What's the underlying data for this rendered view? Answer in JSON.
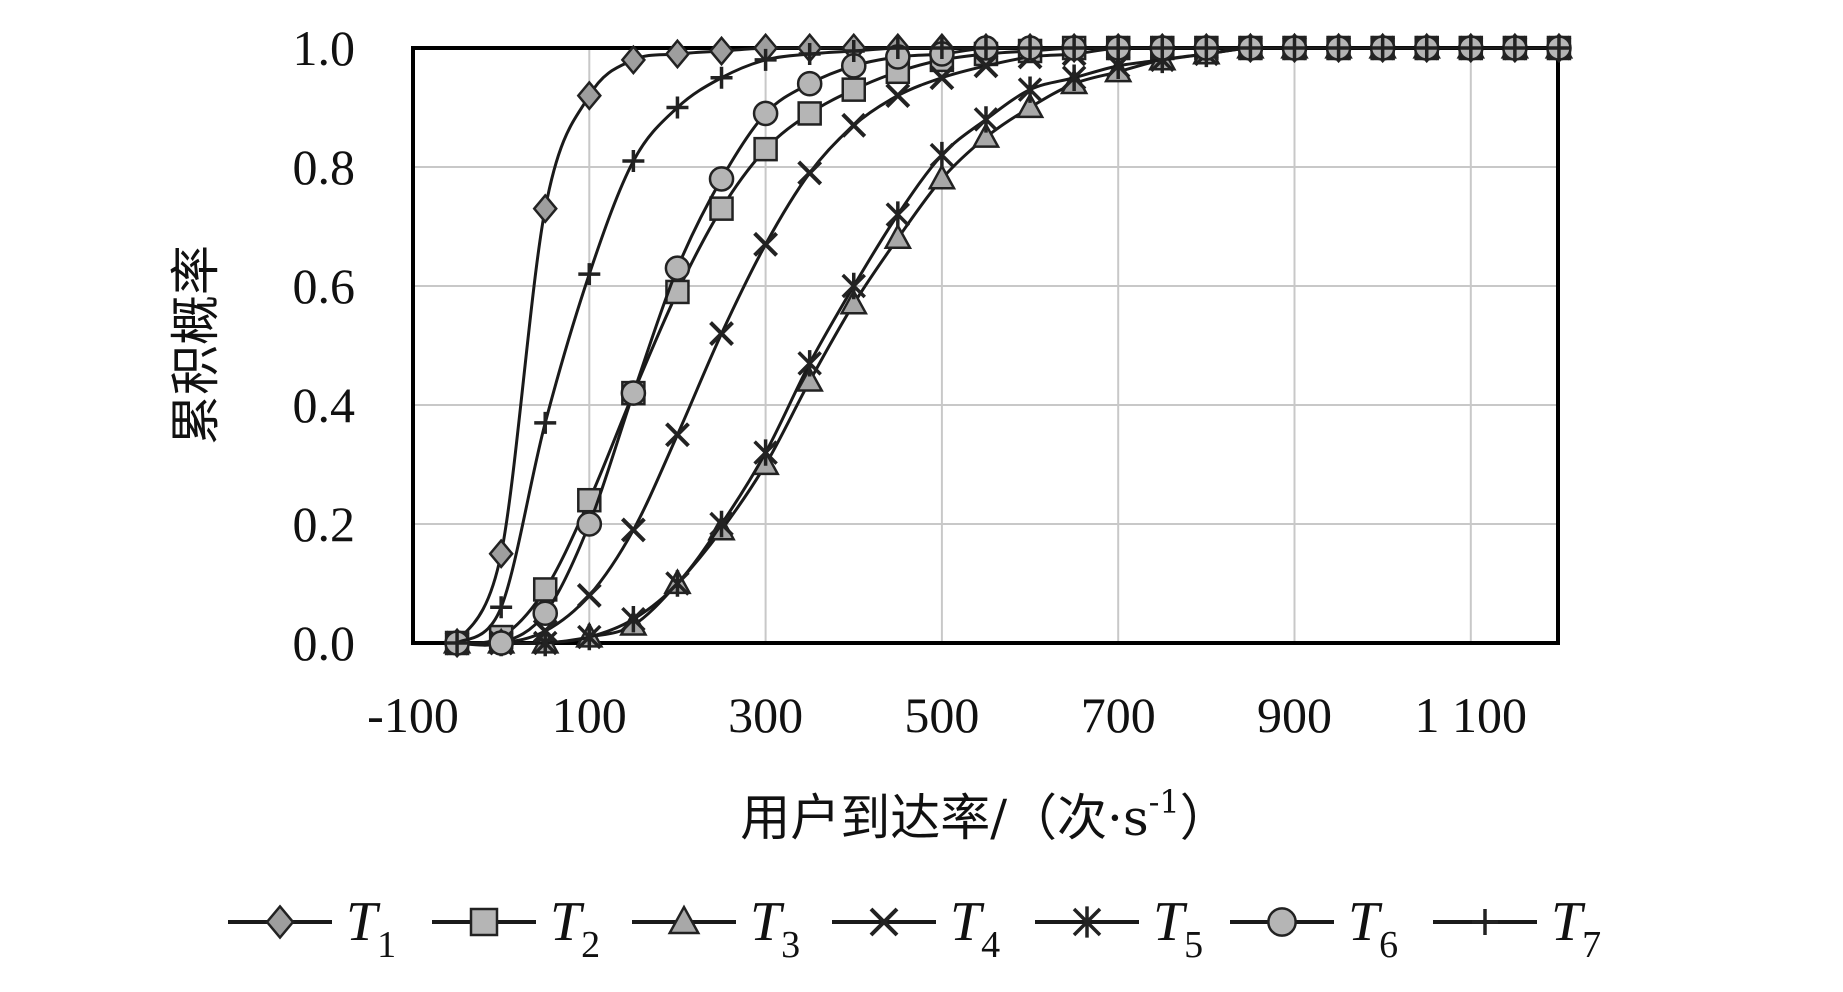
{
  "chart_data": {
    "type": "line",
    "title": "",
    "xlabel": "用户到达率/（次·s",
    "xlabel_superscript": "-1",
    "xlabel_close": "）",
    "ylabel": "累积概率",
    "xlim": [
      -100,
      1200
    ],
    "ylim": [
      0,
      1
    ],
    "grid": true,
    "legend": "bottom",
    "x_ticks": [
      -100,
      100,
      300,
      500,
      700,
      900,
      1100
    ],
    "x_tick_labels": [
      "-100",
      "100",
      "300",
      "500",
      "700",
      "900",
      "1 100"
    ],
    "y_ticks": [
      0,
      0.2,
      0.4,
      0.6,
      0.8,
      1.0
    ],
    "y_tick_labels": [
      "0.0",
      "0.2",
      "0.4",
      "0.6",
      "0.8",
      "1.0"
    ],
    "x": [
      -50,
      0,
      50,
      100,
      150,
      200,
      250,
      300,
      350,
      400,
      450,
      500,
      550,
      600,
      650,
      700,
      750,
      800,
      850,
      900,
      950,
      1000,
      1050,
      1100,
      1150,
      1200
    ],
    "series": [
      {
        "name": "T",
        "sub": "1",
        "marker": "diamond",
        "color": "#9e9e9e",
        "values": [
          0.0,
          0.15,
          0.73,
          0.92,
          0.98,
          0.99,
          0.995,
          1,
          1,
          1,
          1,
          1,
          1,
          1,
          1,
          1,
          1,
          1,
          1,
          1,
          1,
          1,
          1,
          1,
          1,
          1
        ]
      },
      {
        "name": "T",
        "sub": "2",
        "marker": "square",
        "color": "#b5b5b5",
        "values": [
          0.0,
          0.01,
          0.09,
          0.24,
          0.42,
          0.59,
          0.73,
          0.83,
          0.89,
          0.93,
          0.96,
          0.98,
          0.99,
          0.995,
          1,
          1,
          1,
          1,
          1,
          1,
          1,
          1,
          1,
          1,
          1,
          1
        ]
      },
      {
        "name": "T",
        "sub": "3",
        "marker": "triangle",
        "color": "#a8a8a8",
        "values": [
          0.0,
          0.0,
          0.0,
          0.01,
          0.03,
          0.1,
          0.19,
          0.3,
          0.44,
          0.57,
          0.68,
          0.78,
          0.85,
          0.9,
          0.94,
          0.96,
          0.98,
          0.99,
          1,
          1,
          1,
          1,
          1,
          1,
          1,
          1
        ]
      },
      {
        "name": "T",
        "sub": "4",
        "marker": "x",
        "color": "#1a1a1a",
        "values": [
          0.0,
          0.0,
          0.02,
          0.08,
          0.19,
          0.35,
          0.52,
          0.67,
          0.79,
          0.87,
          0.92,
          0.95,
          0.97,
          0.985,
          0.99,
          1,
          1,
          1,
          1,
          1,
          1,
          1,
          1,
          1,
          1,
          1
        ]
      },
      {
        "name": "T",
        "sub": "5",
        "marker": "asterisk",
        "color": "#1a1a1a",
        "values": [
          0.0,
          0.0,
          0.0,
          0.01,
          0.04,
          0.1,
          0.2,
          0.32,
          0.47,
          0.6,
          0.72,
          0.82,
          0.88,
          0.93,
          0.95,
          0.97,
          0.98,
          0.99,
          1,
          1,
          1,
          1,
          1,
          1,
          1,
          1
        ]
      },
      {
        "name": "T",
        "sub": "6",
        "marker": "circle",
        "color": "#b5b5b5",
        "values": [
          0.0,
          0.0,
          0.05,
          0.2,
          0.42,
          0.63,
          0.78,
          0.89,
          0.94,
          0.97,
          0.985,
          0.99,
          1,
          1,
          1,
          1,
          1,
          1,
          1,
          1,
          1,
          1,
          1,
          1,
          1,
          1
        ]
      },
      {
        "name": "T",
        "sub": "7",
        "marker": "plus",
        "color": "#1a1a1a",
        "values": [
          0.0,
          0.06,
          0.37,
          0.62,
          0.81,
          0.9,
          0.95,
          0.98,
          0.99,
          0.995,
          1,
          1,
          1,
          1,
          1,
          1,
          1,
          1,
          1,
          1,
          1,
          1,
          1,
          1,
          1,
          1
        ]
      }
    ]
  }
}
